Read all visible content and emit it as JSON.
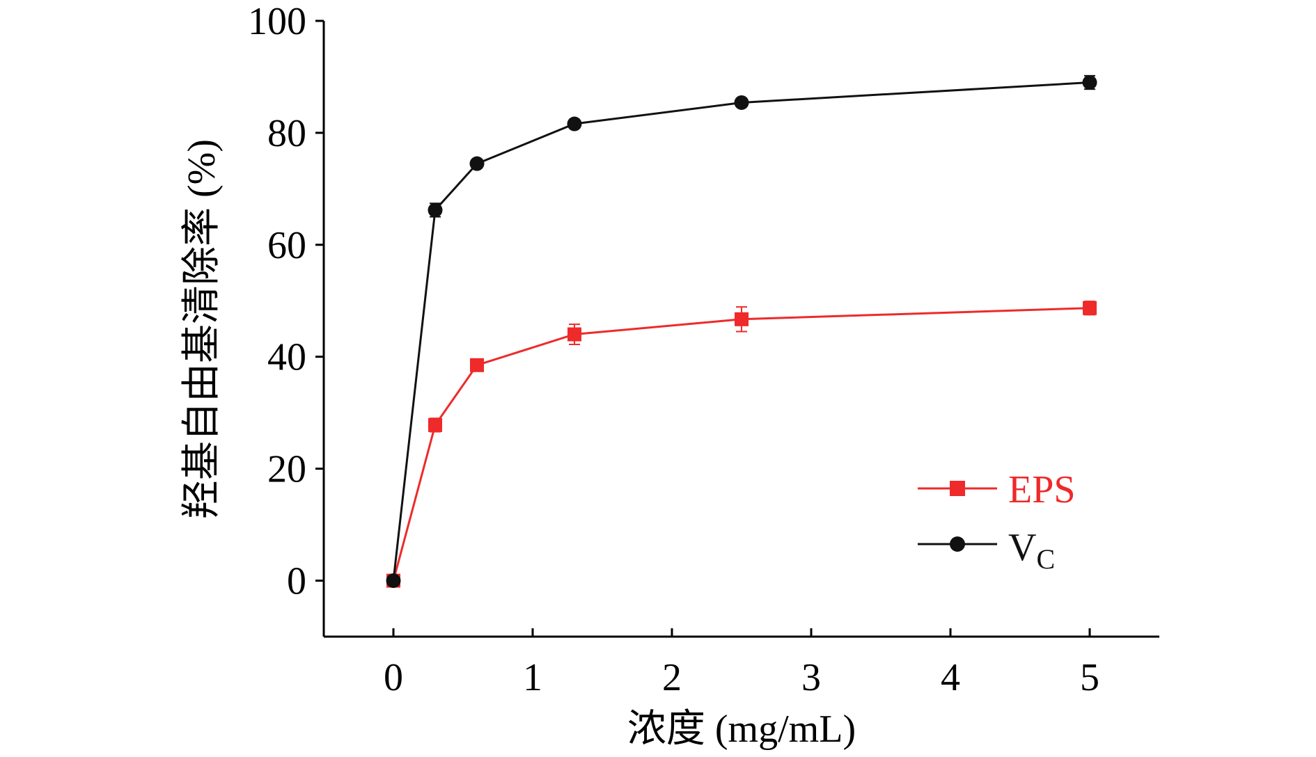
{
  "chart_data": {
    "type": "line",
    "xlabel": "浓度 (mg/mL)",
    "ylabel": "羟基自由基清除率 (%)",
    "xlim": [
      -0.5,
      5.5
    ],
    "ylim": [
      -10,
      100
    ],
    "xticks": [
      0,
      1,
      2,
      3,
      4,
      5
    ],
    "yticks": [
      0,
      20,
      40,
      60,
      80,
      100
    ],
    "xtick_labels": [
      "0",
      "1",
      "2",
      "3",
      "4",
      "5"
    ],
    "ytick_labels": [
      "0",
      "20",
      "40",
      "60",
      "80",
      "100"
    ],
    "grid": false,
    "legend_position": "bottom-right",
    "series": [
      {
        "name": "EPS",
        "color": "#ee2a2a",
        "marker": "square",
        "x": [
          0,
          0.3,
          0.6,
          1.3,
          2.5,
          5
        ],
        "y": [
          0,
          27.8,
          38.5,
          44.0,
          46.7,
          48.7
        ],
        "err": [
          0.5,
          1.2,
          0.8,
          1.8,
          2.2,
          1.2
        ]
      },
      {
        "name": "V",
        "name_subscript": "C",
        "color": "#111111",
        "marker": "circle",
        "x": [
          0,
          0.3,
          0.6,
          1.3,
          2.5,
          5
        ],
        "y": [
          0,
          66.2,
          74.5,
          81.6,
          85.4,
          89.0
        ],
        "err": [
          0.5,
          1.2,
          0.7,
          0.6,
          0.6,
          1.2
        ]
      }
    ]
  }
}
